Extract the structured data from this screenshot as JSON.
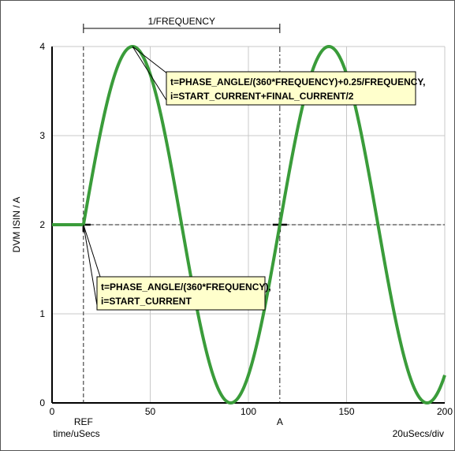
{
  "chart_data": {
    "type": "line",
    "title": "",
    "xlabel": "time/uSecs",
    "ylabel": "DVM ISIN / A",
    "xlim": [
      0,
      200
    ],
    "ylim": [
      0,
      4
    ],
    "x_ticks": [
      "0",
      "50",
      "100",
      "150",
      "200"
    ],
    "y_ticks": [
      "0",
      "1",
      "2",
      "3",
      "4"
    ],
    "scale_label": "20uSecs/div",
    "grid": true,
    "series": [
      {
        "color": "#3a9c3a",
        "waveform": {
          "offset": 2,
          "amplitude": 2,
          "frequency_khz": 10,
          "start_us": 16
        },
        "x": [
          0,
          16,
          21,
          26,
          31,
          36,
          41,
          46,
          51,
          56,
          61,
          66,
          71,
          76,
          81,
          86,
          91,
          96,
          101,
          106,
          111,
          116,
          121,
          126,
          131,
          136,
          141,
          146,
          151,
          156,
          161,
          166,
          171,
          176,
          181,
          186,
          191,
          196,
          200
        ],
        "y": [
          2,
          2,
          2.62,
          3.18,
          3.62,
          3.9,
          4.0,
          3.9,
          3.62,
          3.18,
          2.62,
          2.0,
          1.38,
          0.82,
          0.38,
          0.1,
          0.0,
          0.1,
          0.38,
          0.82,
          1.38,
          2.0,
          2.62,
          3.18,
          3.62,
          3.9,
          4.0,
          3.9,
          3.62,
          3.18,
          2.62,
          2.0,
          1.38,
          0.82,
          0.38,
          0.1,
          0.0,
          0.1,
          0.27
        ]
      }
    ],
    "reference_lines": {
      "horizontal_y": 2,
      "ref_x": 16,
      "a_x": 116,
      "ref_label": "REF",
      "a_label": "A"
    },
    "period_label": "1/FREQUENCY",
    "annotations": [
      {
        "line1": "t=PHASE_ANGLE/(360*FREQUENCY)+0.25/FREQUENCY,",
        "line2": "i=START_CURRENT+FINAL_CURRENT/2",
        "x": 41,
        "y": 4
      },
      {
        "line1": "t=PHASE_ANGLE/(360*FREQUENCY),",
        "line2": "i=START_CURRENT",
        "x": 16,
        "y": 2
      }
    ],
    "note_color": "#ffffcc"
  }
}
